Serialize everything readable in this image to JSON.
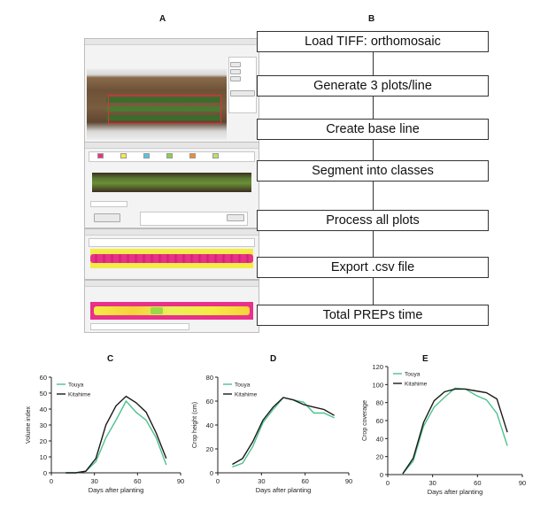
{
  "panels": {
    "a": "A",
    "b": "B",
    "c": "C",
    "d": "D",
    "e": "E"
  },
  "flowchart": {
    "steps": [
      "Load TIFF: orthomosaic",
      "Generate 3 plots/line",
      "Create base line",
      "Segment into classes",
      "Process all plots",
      "Export .csv file",
      "Total PREPs time"
    ]
  },
  "colors": {
    "touya": "#4ec28c",
    "kitahime": "#1a1a1a",
    "weed_pink": "#e8318a",
    "crop_yellow": "#f4ec44"
  },
  "chart_data": [
    {
      "type": "line",
      "panel": "C",
      "ylabel": "Volume index",
      "xlabel": "Days after planting",
      "xlim": [
        0,
        90
      ],
      "ylim": [
        0,
        60
      ],
      "xticks": [
        0,
        30,
        60,
        90
      ],
      "yticks": [
        0,
        10,
        20,
        30,
        40,
        50,
        60
      ],
      "legend": "top-left",
      "series": [
        {
          "name": "Touya",
          "x": [
            10,
            17,
            24,
            31,
            38,
            45,
            52,
            59,
            66,
            73,
            80
          ],
          "y": [
            0,
            0,
            1,
            7,
            22,
            33,
            45,
            38,
            33,
            22,
            5
          ]
        },
        {
          "name": "Kitahime",
          "x": [
            10,
            17,
            24,
            31,
            38,
            45,
            52,
            59,
            66,
            73,
            80
          ],
          "y": [
            0,
            0,
            1,
            9,
            30,
            42,
            48,
            44,
            38,
            25,
            9
          ]
        }
      ]
    },
    {
      "type": "line",
      "panel": "D",
      "ylabel": "Crop height (cm)",
      "xlabel": "Days after planting",
      "xlim": [
        0,
        90
      ],
      "ylim": [
        0,
        80
      ],
      "xticks": [
        0,
        30,
        60,
        90
      ],
      "yticks": [
        0,
        20,
        40,
        60,
        80
      ],
      "legend": "top-left",
      "series": [
        {
          "name": "Touya",
          "x": [
            10,
            17,
            24,
            31,
            38,
            45,
            52,
            59,
            66,
            73,
            80
          ],
          "y": [
            5,
            8,
            22,
            42,
            53,
            63,
            61,
            59,
            50,
            50,
            46
          ]
        },
        {
          "name": "Kitahime",
          "x": [
            10,
            17,
            24,
            31,
            38,
            45,
            52,
            59,
            66,
            73,
            80
          ],
          "y": [
            7,
            12,
            26,
            44,
            55,
            63,
            61,
            57,
            55,
            53,
            48
          ]
        }
      ]
    },
    {
      "type": "line",
      "panel": "E",
      "ylabel": "Crop coverage",
      "xlabel": "Days after planting",
      "xlim": [
        0,
        90
      ],
      "ylim": [
        0,
        120
      ],
      "xticks": [
        0,
        30,
        60,
        90
      ],
      "yticks": [
        0,
        20,
        40,
        60,
        80,
        100,
        120
      ],
      "legend": "top-left",
      "series": [
        {
          "name": "Touya",
          "x": [
            10,
            17,
            24,
            31,
            38,
            45,
            52,
            59,
            66,
            73,
            80
          ],
          "y": [
            1,
            15,
            54,
            75,
            86,
            96,
            95,
            88,
            83,
            68,
            32
          ]
        },
        {
          "name": "Kitahime",
          "x": [
            10,
            17,
            24,
            31,
            38,
            45,
            52,
            59,
            66,
            73,
            80
          ],
          "y": [
            1,
            18,
            58,
            82,
            92,
            95,
            95,
            93,
            91,
            84,
            47
          ]
        }
      ]
    }
  ]
}
